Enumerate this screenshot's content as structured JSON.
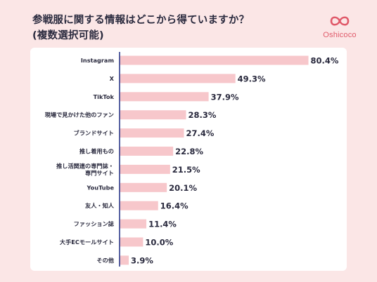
{
  "header": {
    "title_line1": "参戦服に関する情報はどこから得ていますか？",
    "title_line2": "(複数選択可能)"
  },
  "logo": {
    "icon": "infinity-loop-logo",
    "text": "Oshicoco",
    "color": "#e05a6a"
  },
  "colors": {
    "bar": "#f7c7cb",
    "axis": "#2c3a8a",
    "background": "#fbe6e6",
    "panel": "#ffffff"
  },
  "chart_data": {
    "type": "bar",
    "orientation": "horizontal",
    "title": "参戦服に関する情報はどこから得ていますか？",
    "subtitle": "(複数選択可能)",
    "categories": [
      [
        "Instagram"
      ],
      [
        "X"
      ],
      [
        "TikTok"
      ],
      [
        "現場で見かけた他のファン"
      ],
      [
        "ブランドサイト"
      ],
      [
        "推し着用もの"
      ],
      [
        "推し活関連の専門誌・",
        "専門サイト"
      ],
      [
        "YouTube"
      ],
      [
        "友人・知人"
      ],
      [
        "ファッション誌"
      ],
      [
        "大手ECモールサイト"
      ],
      [
        "その他"
      ]
    ],
    "values": [
      80.4,
      49.3,
      37.9,
      28.3,
      27.4,
      22.8,
      21.5,
      20.1,
      16.4,
      11.4,
      10.0,
      3.9
    ],
    "value_labels": [
      "80.4%",
      "49.3%",
      "37.9%",
      "28.3%",
      "27.4%",
      "22.8%",
      "21.5%",
      "20.1%",
      "16.4%",
      "11.4%",
      "10.0%",
      "3.9%"
    ],
    "unit": "%",
    "xlim": [
      0,
      100
    ],
    "grid": false,
    "legend": "none"
  }
}
